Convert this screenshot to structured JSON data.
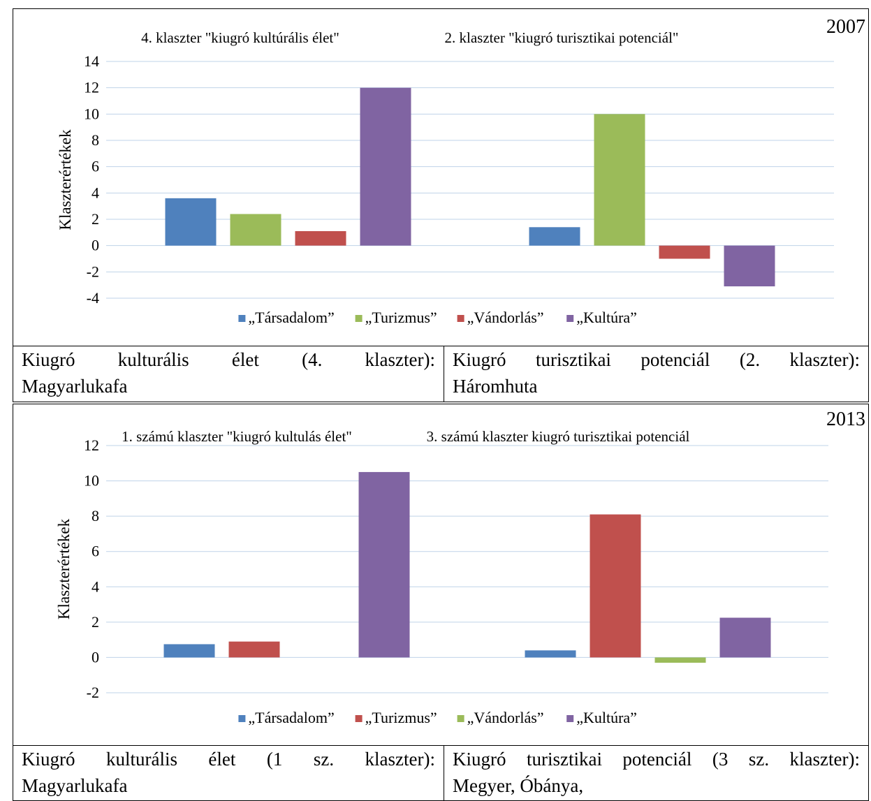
{
  "colors": {
    "blue": "#4F81BD",
    "green": "#9BBB59",
    "red": "#C0504D",
    "purple": "#8064A2",
    "grid": "#BFD3E8"
  },
  "chart_data": [
    {
      "type": "bar",
      "year": "2007",
      "ylabel": "Klaszterértékek",
      "ylim": [
        -4,
        14
      ],
      "yticks": [
        -4,
        -2,
        0,
        2,
        4,
        6,
        8,
        10,
        12,
        14
      ],
      "grid": true,
      "legend_position": "bottom",
      "group_titles": [
        "4. klaszter \"kiugró kultúrális élet\"",
        "2. klaszter \"kiugró turisztikai potenciál\""
      ],
      "series": [
        {
          "name": "„Társadalom”",
          "color": "#4F81BD",
          "values": [
            3.6,
            1.4
          ]
        },
        {
          "name": "„Turizmus”",
          "color": "#9BBB59",
          "values": [
            2.4,
            10.0
          ]
        },
        {
          "name": "„Vándorlás”",
          "color": "#C0504D",
          "values": [
            1.1,
            -1.0
          ]
        },
        {
          "name": "„Kultúra”",
          "color": "#8064A2",
          "values": [
            12.0,
            -3.1
          ]
        }
      ]
    },
    {
      "type": "bar",
      "year": "2013",
      "ylabel": "Klaszterértékek",
      "ylim": [
        -2,
        12
      ],
      "yticks": [
        -2,
        0,
        2,
        4,
        6,
        8,
        10,
        12
      ],
      "grid": true,
      "legend_position": "bottom",
      "group_titles": [
        "1. számú klaszter \"kiugró kultulás élet\"",
        "3. számú klaszter kiugró turisztikai potenciál"
      ],
      "series": [
        {
          "name": "„Társadalom”",
          "color": "#4F81BD",
          "values": [
            0.75,
            0.4
          ]
        },
        {
          "name": "„Turizmus”",
          "color": "#C0504D",
          "values": [
            0.9,
            8.1
          ]
        },
        {
          "name": "„Vándorlás”",
          "color": "#9BBB59",
          "values": [
            0.0,
            -0.3
          ]
        },
        {
          "name": "„Kultúra”",
          "color": "#8064A2",
          "values": [
            10.5,
            2.25
          ]
        }
      ]
    }
  ],
  "captions": [
    {
      "left": {
        "line1": "Kiugró kulturális élet (4. klaszter):",
        "line2": "Magyarlukafa"
      },
      "right": {
        "line1": "Kiugró turisztikai potenciál (2. klaszter):",
        "line2": "Háromhuta"
      }
    },
    {
      "left": {
        "line1": "Kiugró kulturális élet (1 sz. klaszter):",
        "line2": "Magyarlukafa"
      },
      "right": {
        "line1": "Kiugró turisztikai potenciál (3 sz. klaszter):",
        "line2": "Megyer, Óbánya,"
      }
    }
  ]
}
